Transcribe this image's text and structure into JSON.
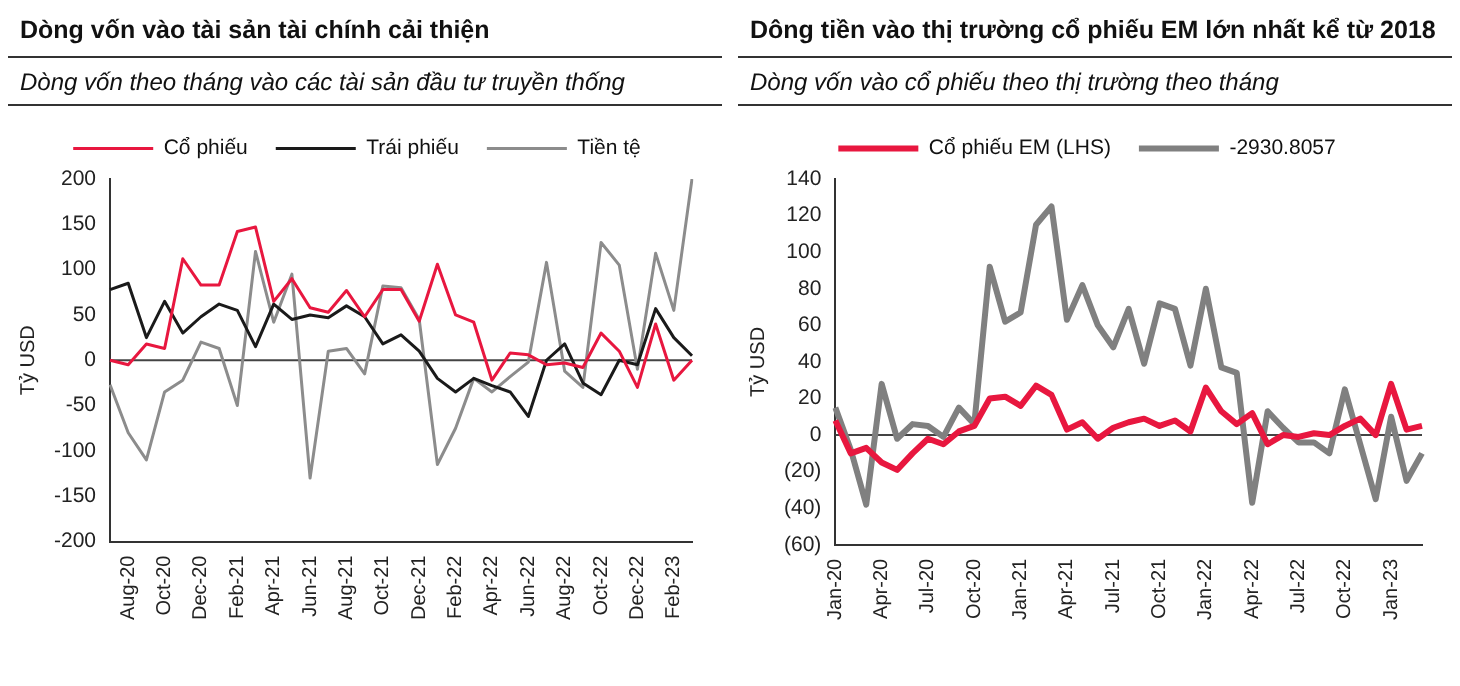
{
  "chart_data": [
    {
      "type": "line",
      "title": "Dòng vốn vào tài sản tài chính cải thiện",
      "subtitle": "Dòng vốn theo tháng vào các tài sản đầu tư truyền thống",
      "ylabel": "Tỷ USD",
      "categories": [
        null,
        "Aug-20",
        null,
        "Oct-20",
        null,
        "Dec-20",
        null,
        "Feb-21",
        null,
        "Apr-21",
        null,
        "Jun-21",
        null,
        "Aug-21",
        null,
        "Oct-21",
        null,
        "Dec-21",
        null,
        "Feb-22",
        null,
        "Apr-22",
        null,
        "Jun-22",
        null,
        "Aug-22",
        null,
        "Oct-22",
        null,
        "Dec-22",
        null,
        "Feb-23",
        null
      ],
      "series": [
        {
          "name": "Cổ phiếu",
          "color": "#e8173f",
          "values": [
            0,
            -5,
            18,
            13,
            112,
            83,
            83,
            142,
            147,
            65,
            90,
            58,
            53,
            77,
            48,
            78,
            78,
            43,
            106,
            50,
            42,
            -22,
            8,
            6,
            -5,
            -3,
            -8,
            30,
            10,
            -30,
            40,
            -22,
            0
          ]
        },
        {
          "name": "Trái phiếu",
          "color": "#1a1a1a",
          "values": [
            78,
            85,
            25,
            65,
            30,
            48,
            62,
            55,
            15,
            62,
            45,
            50,
            47,
            60,
            48,
            18,
            28,
            10,
            -20,
            -35,
            -20,
            -28,
            -35,
            -62,
            0,
            18,
            -25,
            -38,
            0,
            -5,
            57,
            25,
            5
          ]
        },
        {
          "name": "Tiền tệ",
          "color": "#8c8c8c",
          "values": [
            -27,
            -80,
            -110,
            -35,
            -22,
            20,
            13,
            -50,
            120,
            42,
            95,
            -130,
            10,
            13,
            -15,
            82,
            80,
            45,
            -115,
            -75,
            -20,
            -35,
            -18,
            -2,
            108,
            -12,
            -30,
            130,
            105,
            -10,
            118,
            55,
            200
          ]
        }
      ],
      "ylim": [
        -200,
        200
      ],
      "yticks": [
        -200,
        -150,
        -100,
        -50,
        0,
        50,
        100,
        150,
        200
      ],
      "ref_lines": [
        {
          "axis": "y",
          "value": 0
        }
      ],
      "grid": false,
      "legend": "top",
      "marker": "none",
      "line_style": "solid"
    },
    {
      "type": "line",
      "title": "Dông tiền vào thị trường cổ phiếu EM lớn nhất kể từ 2018",
      "subtitle": "Dòng vốn vào cổ phiếu theo thị trường theo tháng",
      "ylabel": "Tỷ USD",
      "categories": [
        "Jan-20",
        null,
        null,
        "Apr-20",
        null,
        null,
        "Jul-20",
        null,
        null,
        "Oct-20",
        null,
        null,
        "Jan-21",
        null,
        null,
        "Apr-21",
        null,
        null,
        "Jul-21",
        null,
        null,
        "Oct-21",
        null,
        null,
        "Jan-22",
        null,
        null,
        "Apr-22",
        null,
        null,
        "Jul-22",
        null,
        null,
        "Oct-22",
        null,
        null,
        "Jan-23",
        null,
        null
      ],
      "series": [
        {
          "name": "Cổ phiếu EM (LHS)",
          "color": "#e8173f",
          "values": [
            8,
            -10,
            -7,
            -15,
            -19,
            -10,
            -2,
            -5,
            2,
            5,
            20,
            21,
            16,
            27,
            22,
            3,
            7,
            -2,
            4,
            7,
            9,
            5,
            8,
            2,
            26,
            13,
            6,
            12,
            -5,
            0,
            -1,
            1,
            0,
            5,
            9,
            0,
            28,
            3,
            5
          ]
        },
        {
          "name": "-2930.8057",
          "color": "#808080",
          "values": [
            15,
            -8,
            -38,
            28,
            -2,
            6,
            5,
            -1,
            15,
            6,
            92,
            62,
            67,
            115,
            125,
            63,
            82,
            60,
            48,
            69,
            39,
            72,
            69,
            38,
            80,
            37,
            34,
            -37,
            13,
            4,
            -4,
            -4,
            -10,
            25,
            -5,
            -35,
            10,
            -25,
            -10
          ]
        }
      ],
      "ylim": [
        -60,
        140
      ],
      "yticks": [
        {
          "value": -60,
          "label": "(60)"
        },
        {
          "value": -40,
          "label": "(40)"
        },
        {
          "value": -20,
          "label": "(20)"
        },
        0,
        20,
        40,
        60,
        80,
        100,
        120,
        140
      ],
      "ref_lines": [
        {
          "axis": "y",
          "value": 0
        }
      ],
      "grid": false,
      "legend": "top",
      "marker": "none",
      "line_style": "solid"
    }
  ]
}
